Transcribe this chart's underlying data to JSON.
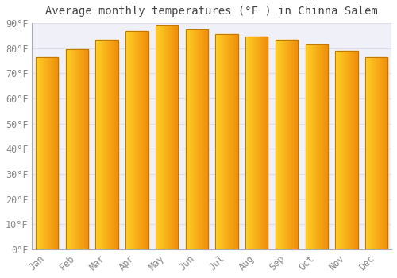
{
  "title": "Average monthly temperatures (°F ) in Chinna Salem",
  "months": [
    "Jan",
    "Feb",
    "Mar",
    "Apr",
    "May",
    "Jun",
    "Jul",
    "Aug",
    "Sep",
    "Oct",
    "Nov",
    "Dec"
  ],
  "values": [
    76.5,
    79.5,
    83.5,
    87.0,
    89.0,
    87.5,
    85.5,
    84.5,
    83.5,
    81.5,
    79.0,
    76.5
  ],
  "bar_color_left": "#FFD040",
  "bar_color_right": "#F0900A",
  "bar_edge_color": "#C07800",
  "ylim": [
    0,
    90
  ],
  "yticks": [
    0,
    10,
    20,
    30,
    40,
    50,
    60,
    70,
    80,
    90
  ],
  "ytick_labels": [
    "0°F",
    "10°F",
    "20°F",
    "30°F",
    "40°F",
    "50°F",
    "60°F",
    "70°F",
    "80°F",
    "90°F"
  ],
  "background_color": "#ffffff",
  "plot_bg_color": "#f0f0f8",
  "grid_color": "#ddddee",
  "title_fontsize": 10,
  "tick_fontsize": 8.5,
  "bar_width": 0.75,
  "gradient_steps": 50
}
